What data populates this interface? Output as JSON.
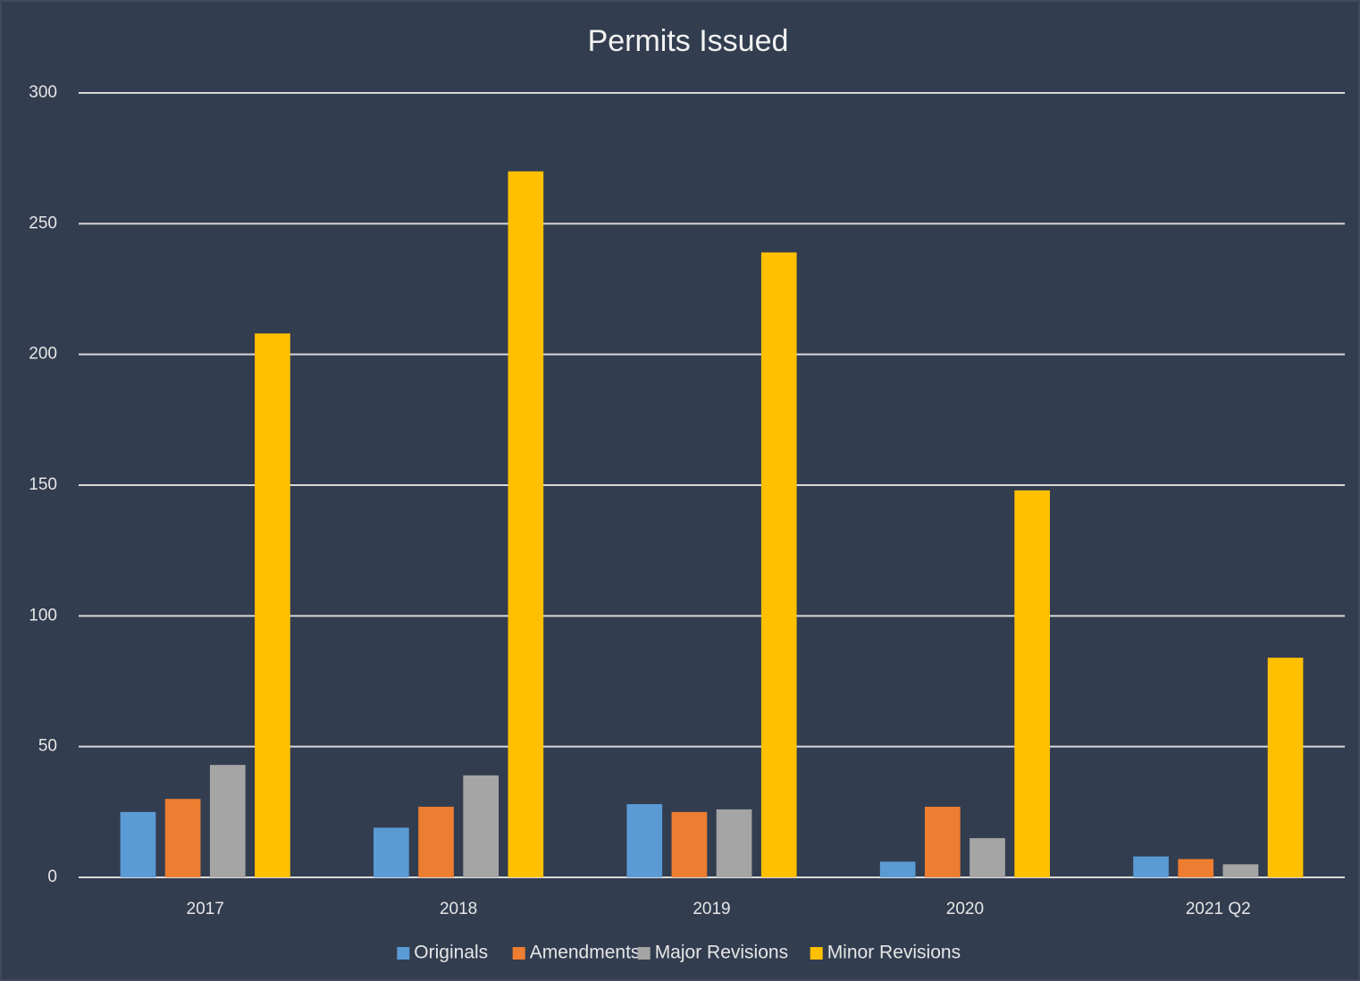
{
  "chart_data": {
    "type": "bar",
    "title": "Permits Issued",
    "categories": [
      "2017",
      "2018",
      "2019",
      "2020",
      "2021 Q2"
    ],
    "series": [
      {
        "name": "Originals",
        "color": "#5b9bd5",
        "values": [
          25,
          19,
          28,
          6,
          8
        ]
      },
      {
        "name": "Amendments",
        "color": "#ed7d31",
        "values": [
          30,
          27,
          25,
          27,
          7
        ]
      },
      {
        "name": "Major Revisions",
        "color": "#a5a5a5",
        "values": [
          43,
          39,
          26,
          15,
          5
        ]
      },
      {
        "name": "Minor Revisions",
        "color": "#ffc000",
        "values": [
          208,
          270,
          239,
          148,
          84
        ]
      }
    ],
    "ylim": [
      0,
      300
    ],
    "yticks": [
      0,
      50,
      100,
      150,
      200,
      250,
      300
    ],
    "grid": true,
    "legend": "bottom"
  }
}
